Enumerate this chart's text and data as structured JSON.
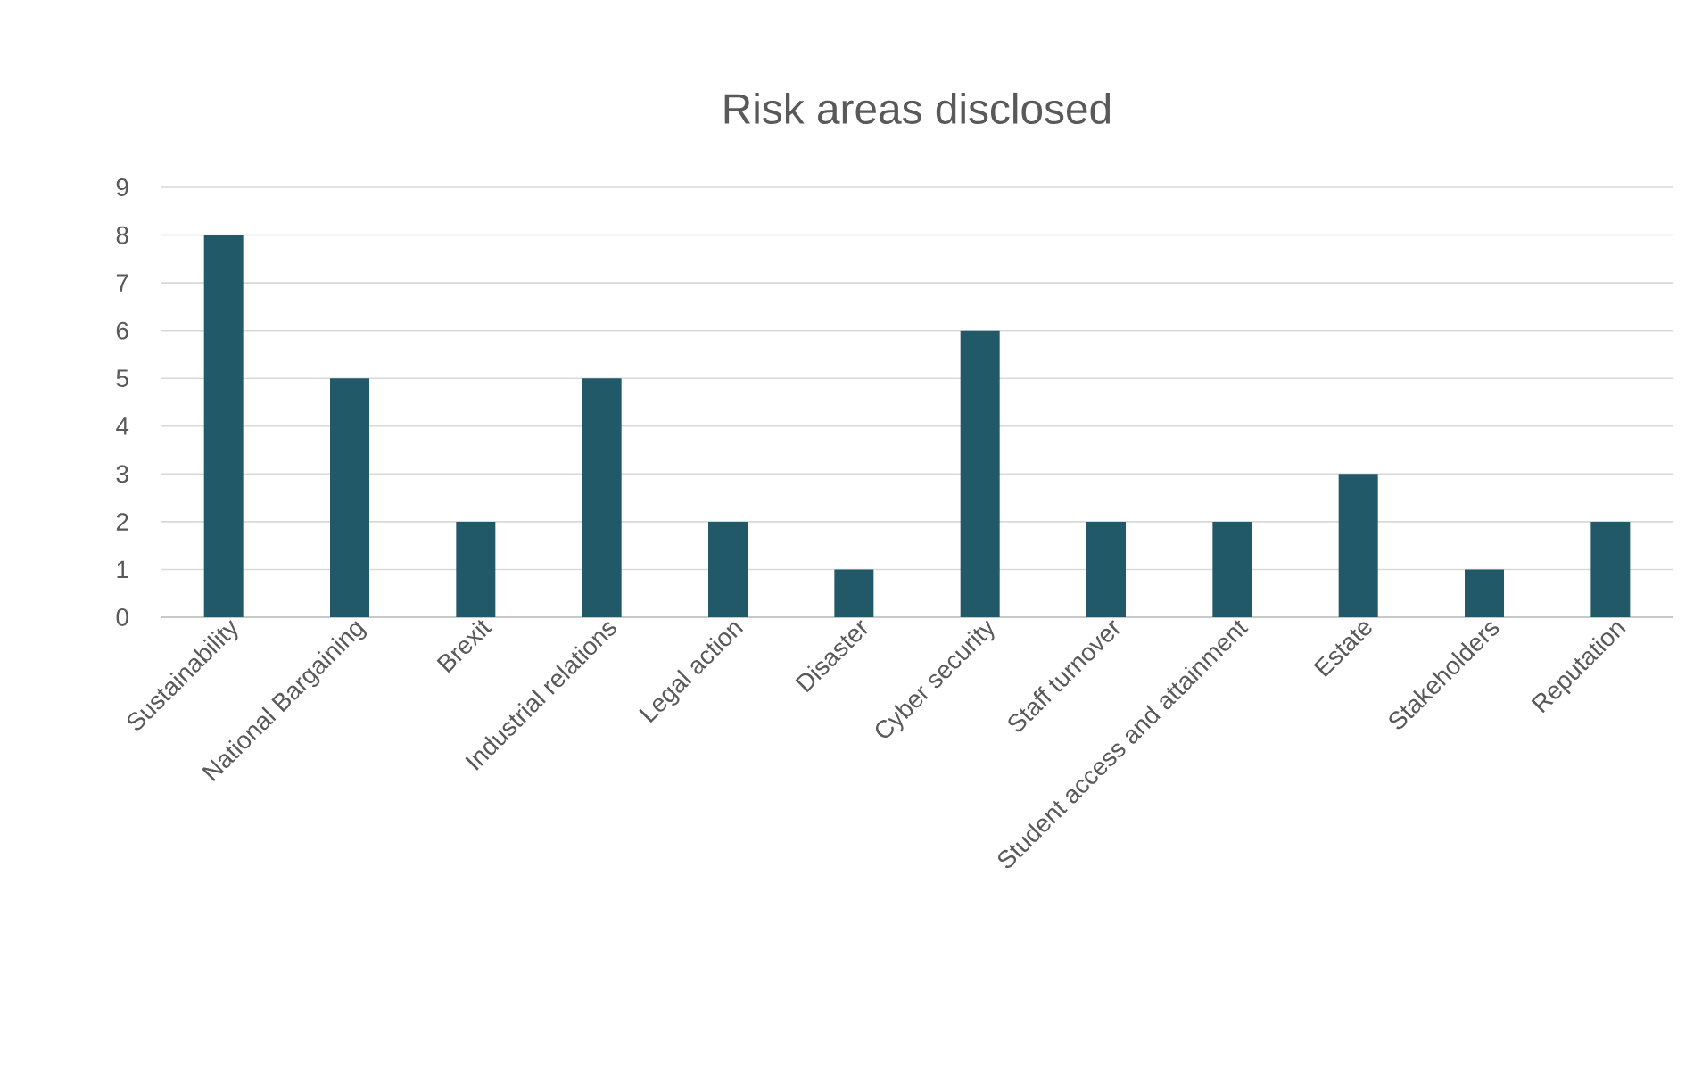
{
  "chart_data": {
    "type": "bar",
    "title": "Risk areas disclosed",
    "categories": [
      "Sustainability",
      "National Bargaining",
      "Brexit",
      "Industrial relations",
      "Legal action",
      "Disaster",
      "Cyber security",
      "Staff turnover",
      "Student access and attainment",
      "Estate",
      "Stakeholders",
      "Reputation"
    ],
    "values": [
      8,
      5,
      2,
      5,
      2,
      1,
      6,
      2,
      2,
      3,
      1,
      2
    ],
    "color": "#215968",
    "ylim": [
      0,
      9
    ],
    "yticks": [
      0,
      1,
      2,
      3,
      4,
      5,
      6,
      7,
      8,
      9
    ],
    "grid": "y"
  }
}
